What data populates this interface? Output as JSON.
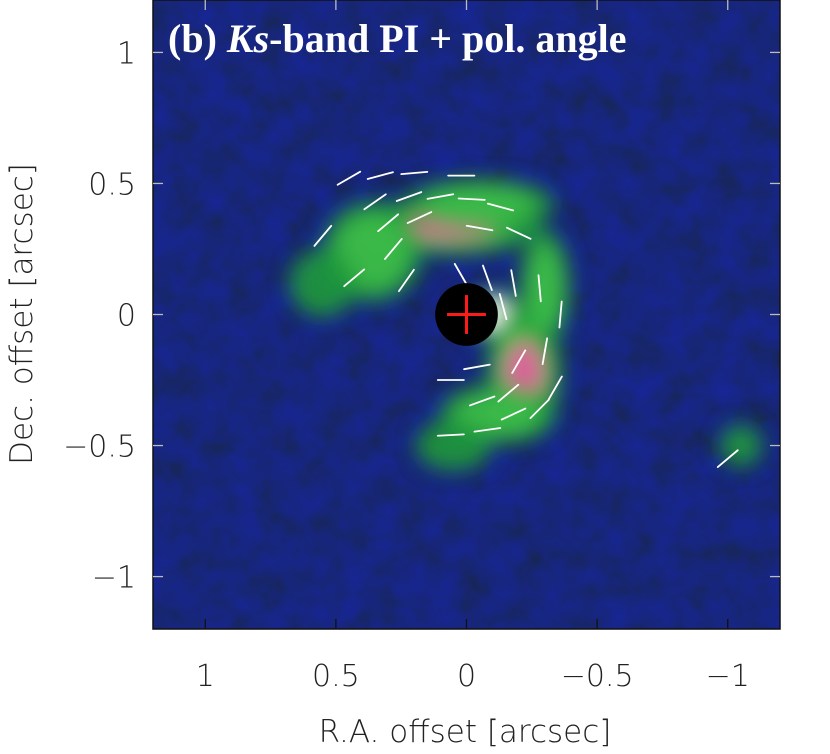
{
  "chart_data": {
    "type": "heatmap",
    "title_prefix": "(b) ",
    "title_italic": "Ks",
    "title_suffix": "-band PI + pol. angle",
    "xlabel": "R.A. offset [arcsec]",
    "ylabel": "Dec. offset [arcsec]",
    "xlim": [
      1.2,
      -1.2
    ],
    "ylim": [
      -1.2,
      1.2
    ],
    "x_ticks": [
      1,
      0.5,
      0,
      -0.5,
      -1
    ],
    "x_tick_labels": [
      "1",
      "0.5",
      "0",
      "−0.5",
      "−1"
    ],
    "y_ticks": [
      1,
      0.5,
      0,
      -0.5,
      -1
    ],
    "y_tick_labels": [
      "1",
      "0.5",
      "0",
      "−0.5",
      "−1"
    ],
    "colormap": [
      "#02040a",
      "#0b1a5c",
      "#1d8a3a",
      "#4dc44a",
      "#e0509a",
      "#ffffff"
    ],
    "star_marker": {
      "x": 0,
      "y": 0,
      "radius": 0.12,
      "mask_color": "#000000",
      "cross_color": "#ff1a1a"
    },
    "intensity_features": [
      {
        "name": "north arc",
        "x": 0.06,
        "y": 0.34,
        "sx": 0.22,
        "sy": 0.07,
        "peak": 0.8
      },
      {
        "name": "north arc wing",
        "x": 0.36,
        "y": 0.24,
        "sx": 0.12,
        "sy": 0.12,
        "peak": 0.45
      },
      {
        "name": "north-west arm",
        "x": -0.05,
        "y": 0.42,
        "sx": 0.18,
        "sy": 0.06,
        "peak": 0.45
      },
      {
        "name": "inner bright",
        "x": -0.1,
        "y": 0.0,
        "sx": 0.07,
        "sy": 0.06,
        "peak": 1.0
      },
      {
        "name": "south-west arc",
        "x": -0.22,
        "y": -0.22,
        "sx": 0.09,
        "sy": 0.16,
        "peak": 0.8
      },
      {
        "name": "south arc tail",
        "x": -0.12,
        "y": -0.38,
        "sx": 0.14,
        "sy": 0.07,
        "peak": 0.55
      },
      {
        "name": "west arm",
        "x": -0.3,
        "y": 0.1,
        "sx": 0.06,
        "sy": 0.14,
        "peak": 0.45
      },
      {
        "name": "east clump",
        "x": 0.55,
        "y": 0.12,
        "sx": 0.08,
        "sy": 0.08,
        "peak": 0.35
      },
      {
        "name": "south-east clump",
        "x": 0.05,
        "y": -0.5,
        "sx": 0.09,
        "sy": 0.06,
        "peak": 0.3
      },
      {
        "name": "far west clump",
        "x": -1.05,
        "y": -0.5,
        "sx": 0.05,
        "sy": 0.05,
        "peak": 0.35
      }
    ],
    "polarization_vectors": [
      {
        "x": 0.55,
        "y": 0.3,
        "angle_deg": 50
      },
      {
        "x": 0.45,
        "y": 0.52,
        "angle_deg": 30
      },
      {
        "x": 0.33,
        "y": 0.53,
        "angle_deg": 15
      },
      {
        "x": 0.2,
        "y": 0.54,
        "angle_deg": 5
      },
      {
        "x": 0.02,
        "y": 0.53,
        "angle_deg": 0
      },
      {
        "x": 0.35,
        "y": 0.43,
        "angle_deg": 35
      },
      {
        "x": 0.22,
        "y": 0.45,
        "angle_deg": 20
      },
      {
        "x": 0.1,
        "y": 0.45,
        "angle_deg": 10
      },
      {
        "x": -0.02,
        "y": 0.44,
        "angle_deg": -3
      },
      {
        "x": -0.13,
        "y": 0.41,
        "angle_deg": -15
      },
      {
        "x": 0.3,
        "y": 0.35,
        "angle_deg": 40
      },
      {
        "x": 0.18,
        "y": 0.37,
        "angle_deg": 25
      },
      {
        "x": -0.05,
        "y": 0.33,
        "angle_deg": -10
      },
      {
        "x": -0.2,
        "y": 0.31,
        "angle_deg": -25
      },
      {
        "x": 0.43,
        "y": 0.14,
        "angle_deg": 40
      },
      {
        "x": 0.28,
        "y": 0.25,
        "angle_deg": 50
      },
      {
        "x": 0.23,
        "y": 0.13,
        "angle_deg": 55
      },
      {
        "x": 0.02,
        "y": 0.15,
        "angle_deg": -60
      },
      {
        "x": -0.08,
        "y": 0.14,
        "angle_deg": -70
      },
      {
        "x": -0.18,
        "y": 0.12,
        "angle_deg": -80
      },
      {
        "x": -0.28,
        "y": 0.1,
        "angle_deg": -85
      },
      {
        "x": -0.36,
        "y": 0.0,
        "angle_deg": 85
      },
      {
        "x": -0.14,
        "y": 0.03,
        "angle_deg": -75
      },
      {
        "x": -0.3,
        "y": -0.14,
        "angle_deg": 80
      },
      {
        "x": -0.34,
        "y": -0.28,
        "angle_deg": 60
      },
      {
        "x": -0.28,
        "y": -0.36,
        "angle_deg": 45
      },
      {
        "x": -0.2,
        "y": -0.18,
        "angle_deg": 60
      },
      {
        "x": -0.16,
        "y": -0.3,
        "angle_deg": 40
      },
      {
        "x": -0.06,
        "y": -0.33,
        "angle_deg": 20
      },
      {
        "x": -0.18,
        "y": -0.38,
        "angle_deg": 25
      },
      {
        "x": -0.08,
        "y": -0.44,
        "angle_deg": 8
      },
      {
        "x": 0.06,
        "y": -0.46,
        "angle_deg": 3
      },
      {
        "x": 0.06,
        "y": -0.25,
        "angle_deg": 0
      },
      {
        "x": -0.04,
        "y": -0.2,
        "angle_deg": 10
      },
      {
        "x": -1.0,
        "y": -0.55,
        "angle_deg": 40
      }
    ]
  }
}
